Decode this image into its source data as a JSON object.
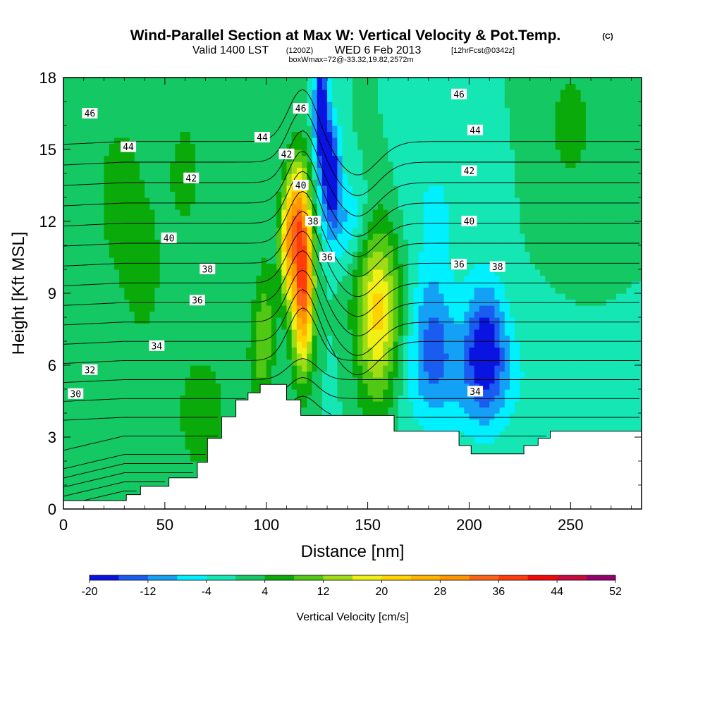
{
  "chart_data": {
    "type": "heatmap",
    "title": "Wind-Parallel Section at Max W: Vertical Velocity & Pot.Temp.",
    "copyright": "(C)",
    "subtitle_valid": "Valid 1400 LST",
    "subtitle_utc": "(1200Z)",
    "subtitle_date": "WED 6 Feb 2013",
    "subtitle_fcst": "[12hrFcst@0342z]",
    "subtitle_box": "boxWmax=72@-33.32,19.82,2572m",
    "xlabel": "Distance [nm]",
    "ylabel": "Height [Kft MSL]",
    "xlim": [
      0,
      285
    ],
    "ylim": [
      0,
      18
    ],
    "x_ticks": [
      0,
      50,
      100,
      150,
      200,
      250
    ],
    "y_ticks": [
      0,
      3,
      6,
      9,
      12,
      15,
      18
    ],
    "colorbar": {
      "label": "Vertical Velocity [cm/s]",
      "levels": [
        -20,
        -16,
        -12,
        -8,
        -4,
        0,
        4,
        8,
        12,
        16,
        20,
        24,
        28,
        32,
        36,
        40,
        44,
        48,
        52
      ],
      "tick_labels": [
        "-20",
        "-12",
        "-4",
        "4",
        "12",
        "20",
        "28",
        "36",
        "44",
        "52"
      ],
      "colors": [
        "#0a14e0",
        "#1a5cf0",
        "#14a0f5",
        "#00f0ff",
        "#14e6b4",
        "#14c864",
        "#0aaa0a",
        "#50c814",
        "#a0dc14",
        "#f0f014",
        "#ffd200",
        "#ffb400",
        "#ff9600",
        "#ff6414",
        "#ff3c0a",
        "#f00a0a",
        "#c80a3c",
        "#96006e"
      ]
    },
    "terrain": [
      [
        0,
        0.35
      ],
      [
        31,
        0.35
      ],
      [
        31,
        0.6
      ],
      [
        38,
        0.6
      ],
      [
        38,
        0.95
      ],
      [
        52,
        0.95
      ],
      [
        52,
        1.3
      ],
      [
        66,
        1.3
      ],
      [
        66,
        1.95
      ],
      [
        71,
        1.95
      ],
      [
        71,
        2.95
      ],
      [
        78,
        2.95
      ],
      [
        78,
        3.85
      ],
      [
        85,
        3.85
      ],
      [
        85,
        4.55
      ],
      [
        91,
        4.55
      ],
      [
        91,
        4.85
      ],
      [
        97,
        4.85
      ],
      [
        97,
        5.2
      ],
      [
        110,
        5.2
      ],
      [
        110,
        4.55
      ],
      [
        117,
        4.55
      ],
      [
        117,
        3.9
      ],
      [
        163,
        3.9
      ],
      [
        163,
        3.25
      ],
      [
        195,
        3.25
      ],
      [
        195,
        2.65
      ],
      [
        201,
        2.65
      ],
      [
        201,
        2.3
      ],
      [
        227,
        2.3
      ],
      [
        227,
        2.65
      ],
      [
        234,
        2.65
      ],
      [
        234,
        2.95
      ],
      [
        240,
        2.95
      ],
      [
        240,
        3.25
      ],
      [
        285,
        3.25
      ]
    ],
    "background_value": 0,
    "wv_features": [
      {
        "x": 28,
        "y": 13.0,
        "rx": 14,
        "ry": 4.0,
        "w": 6
      },
      {
        "x": 40,
        "y": 9.5,
        "rx": 10,
        "ry": 3.0,
        "w": 5
      },
      {
        "x": 100,
        "y": 8.0,
        "rx": 5,
        "ry": 3.0,
        "w": 7
      },
      {
        "x": 118,
        "y": 9.5,
        "rx": 5.5,
        "ry": 3.6,
        "w": 36
      },
      {
        "x": 115,
        "y": 12.5,
        "rx": 5,
        "ry": 2.4,
        "w": 16
      },
      {
        "x": 110,
        "y": 11.0,
        "rx": 4,
        "ry": 2.5,
        "w": 18
      },
      {
        "x": 155,
        "y": 8.0,
        "rx": 11,
        "ry": 4.0,
        "w": 22
      },
      {
        "x": 127,
        "y": 16.5,
        "rx": 3.5,
        "ry": 2.3,
        "w": -24
      },
      {
        "x": 132,
        "y": 14.0,
        "rx": 4.5,
        "ry": 2.2,
        "w": -20
      },
      {
        "x": 140,
        "y": 12.0,
        "rx": 11,
        "ry": 1.8,
        "w": -8
      },
      {
        "x": 183,
        "y": 13.0,
        "rx": 22,
        "ry": 3.0,
        "w": -4
      },
      {
        "x": 182,
        "y": 7.5,
        "rx": 10,
        "ry": 3.0,
        "w": -10
      },
      {
        "x": 208,
        "y": 6.8,
        "rx": 10,
        "ry": 2.8,
        "w": -16
      },
      {
        "x": 195,
        "y": 5.5,
        "rx": 38,
        "ry": 2.6,
        "w": -7
      },
      {
        "x": 68,
        "y": 4.0,
        "rx": 12,
        "ry": 2.5,
        "w": 8
      },
      {
        "x": 96,
        "y": 6.5,
        "rx": 6,
        "ry": 2.5,
        "w": 7
      },
      {
        "x": 250,
        "y": 16,
        "rx": 15,
        "ry": 4.0,
        "w": 5
      },
      {
        "x": 60,
        "y": 14,
        "rx": 12,
        "ry": 3.5,
        "w": 5
      }
    ],
    "theta_levels": [
      29,
      29.5,
      30,
      30.5,
      31,
      31.5,
      32,
      33,
      34,
      35,
      36,
      37,
      38,
      39,
      40,
      41,
      42,
      43,
      44,
      45,
      46,
      47,
      48
    ],
    "theta_labels": [
      {
        "text": "46",
        "x": 13,
        "y": 16.5
      },
      {
        "text": "44",
        "x": 32,
        "y": 15.1
      },
      {
        "text": "42",
        "x": 63,
        "y": 13.8
      },
      {
        "text": "40",
        "x": 52,
        "y": 11.3
      },
      {
        "text": "38",
        "x": 71,
        "y": 10.0
      },
      {
        "text": "36",
        "x": 66,
        "y": 8.7
      },
      {
        "text": "34",
        "x": 46,
        "y": 6.8
      },
      {
        "text": "32",
        "x": 13,
        "y": 5.8
      },
      {
        "text": "30",
        "x": 6,
        "y": 4.8
      },
      {
        "text": "46",
        "x": 117,
        "y": 16.7
      },
      {
        "text": "44",
        "x": 98,
        "y": 15.5
      },
      {
        "text": "42",
        "x": 110,
        "y": 14.8
      },
      {
        "text": "40",
        "x": 117,
        "y": 13.5
      },
      {
        "text": "38",
        "x": 123,
        "y": 12.0
      },
      {
        "text": "36",
        "x": 130,
        "y": 10.5
      },
      {
        "text": "46",
        "x": 195,
        "y": 17.3
      },
      {
        "text": "44",
        "x": 203,
        "y": 15.8
      },
      {
        "text": "42",
        "x": 200,
        "y": 14.1
      },
      {
        "text": "40",
        "x": 200,
        "y": 12.0
      },
      {
        "text": "36",
        "x": 195,
        "y": 10.2
      },
      {
        "text": "38",
        "x": 214,
        "y": 10.1
      },
      {
        "text": "34",
        "x": 203,
        "y": 4.9
      }
    ]
  }
}
